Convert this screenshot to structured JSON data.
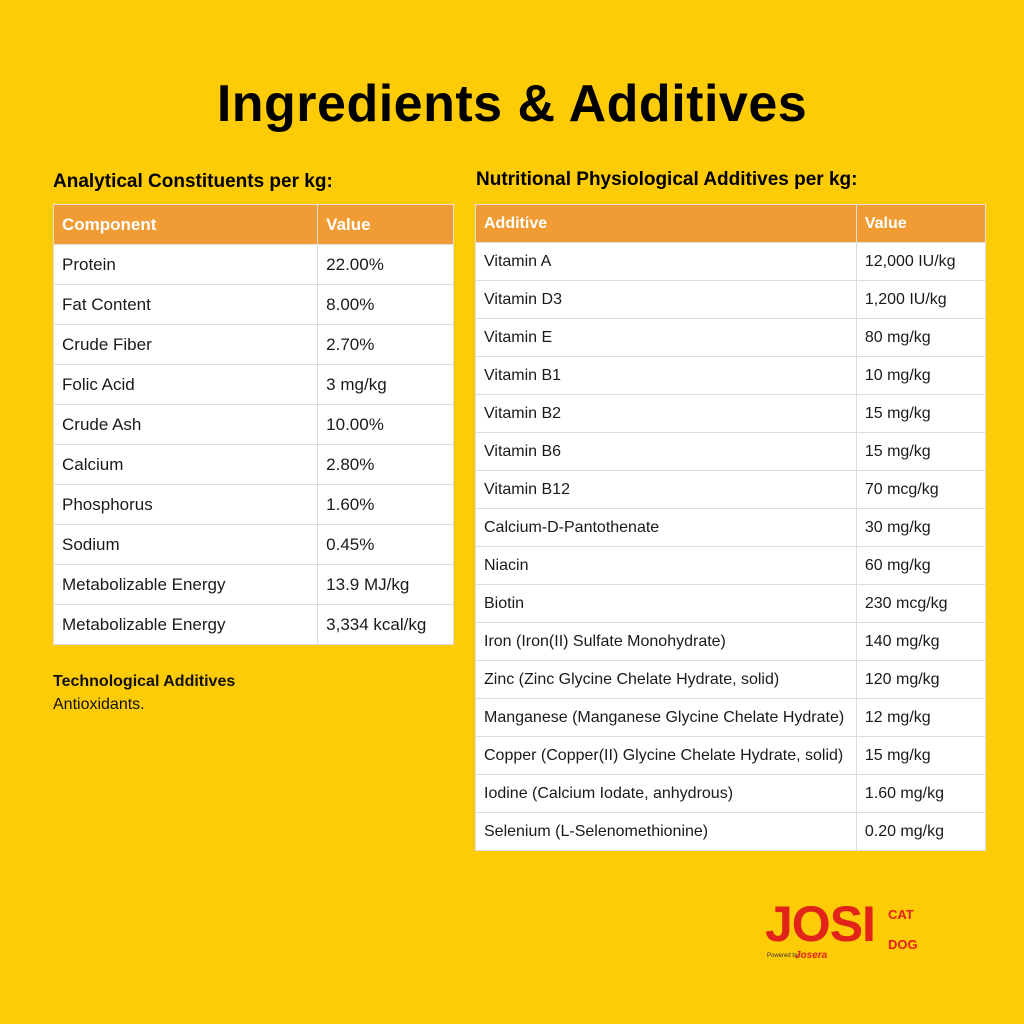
{
  "title": "Ingredients & Additives",
  "analytical": {
    "heading": "Analytical Constituents per kg:",
    "columns": [
      "Component",
      "Value"
    ],
    "rows": [
      [
        "Protein",
        "22.00%"
      ],
      [
        "Fat Content",
        "8.00%"
      ],
      [
        "Crude Fiber",
        "2.70%"
      ],
      [
        "Folic Acid",
        "3 mg/kg"
      ],
      [
        "Crude Ash",
        "10.00%"
      ],
      [
        "Calcium",
        "2.80%"
      ],
      [
        "Phosphorus",
        "1.60%"
      ],
      [
        "Sodium",
        "0.45%"
      ],
      [
        "Metabolizable Energy",
        "13.9 MJ/kg"
      ],
      [
        "Metabolizable Energy",
        "3,334 kcal/kg"
      ]
    ]
  },
  "nutritional": {
    "heading": "Nutritional Physiological Additives per kg:",
    "columns": [
      "Additive",
      "Value"
    ],
    "rows": [
      [
        "Vitamin A",
        "12,000 IU/kg"
      ],
      [
        "Vitamin D3",
        "1,200 IU/kg"
      ],
      [
        "Vitamin E",
        "80 mg/kg"
      ],
      [
        "Vitamin B1",
        "10 mg/kg"
      ],
      [
        "Vitamin B2",
        "15 mg/kg"
      ],
      [
        "Vitamin B6",
        "15 mg/kg"
      ],
      [
        "Vitamin B12",
        "70 mcg/kg"
      ],
      [
        "Calcium-D-Pantothenate",
        "30 mg/kg"
      ],
      [
        "Niacin",
        "60 mg/kg"
      ],
      [
        "Biotin",
        "230 mcg/kg"
      ],
      [
        "Iron (Iron(II) Sulfate Monohydrate)",
        "140 mg/kg"
      ],
      [
        "Zinc (Zinc Glycine Chelate Hydrate, solid)",
        "120 mg/kg"
      ],
      [
        "Manganese (Manganese Glycine Chelate Hydrate)",
        "12 mg/kg"
      ],
      [
        "Copper (Copper(II) Glycine Chelate Hydrate, solid)",
        "15 mg/kg"
      ],
      [
        "Iodine (Calcium Iodate, anhydrous)",
        "1.60 mg/kg"
      ],
      [
        "Selenium (L-Selenomethionine)",
        "0.20 mg/kg"
      ]
    ]
  },
  "technological": {
    "heading": "Technological Additives",
    "text": "Antioxidants."
  },
  "logo": {
    "main": "JOSI",
    "cat": "CAT",
    "dog": "DOG",
    "sub": "Powered by",
    "brand": "Josera"
  },
  "colors": {
    "background": "#FECB07",
    "table_header": "#F19B35",
    "logo_red": "#E2231A"
  }
}
